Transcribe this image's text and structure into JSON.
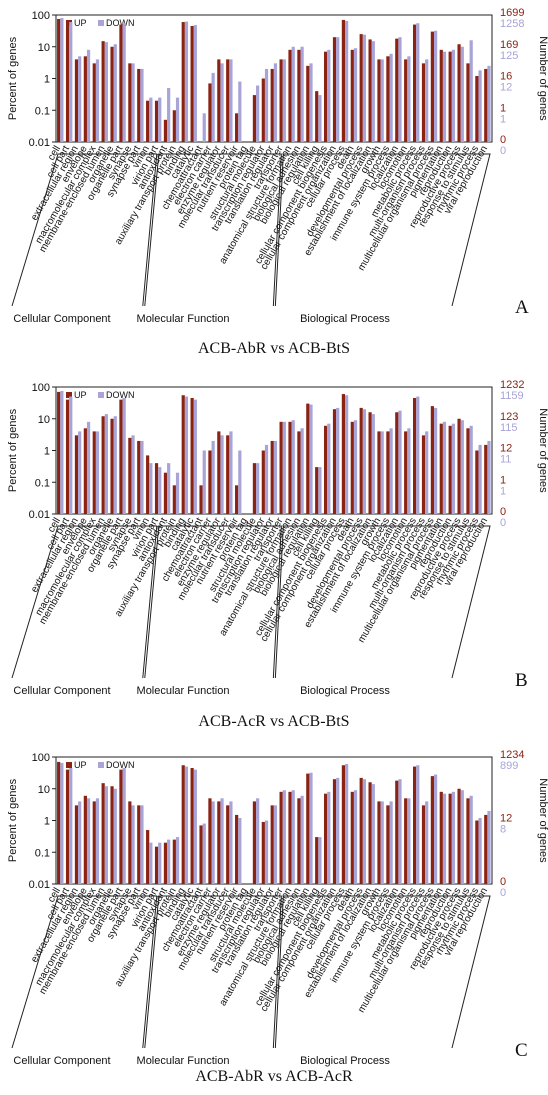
{
  "categories": [
    "cell",
    "cell part",
    "extracellular region",
    "envelope",
    "macromolecular complex",
    "membrane-enclosed lumen",
    "organelle",
    "organelle part",
    "synapse",
    "synapse part",
    "virion",
    "virion part",
    "antioxidant",
    "auxiliary transport protein",
    "binding",
    "catalytic",
    "chemoattractant",
    "electron carrier",
    "enzyme regulator",
    "molecular transducer",
    "nutrient reservoir",
    "protein tag",
    "structural molecule",
    "transcription regulator",
    "translation regulator",
    "transporter",
    "anatomical structure formation",
    "biological adhesion",
    "biological regulation",
    "cell killing",
    "cellular component biogenesis",
    "cellular component organization",
    "cellular process",
    "death",
    "developmental process",
    "establishment of localization",
    "growth",
    "immune system process",
    "localization",
    "locomotion",
    "metabolic process",
    "multi-organism process",
    "multicellular organismal process",
    "pigmentation",
    "reproduction",
    "reproductive process",
    "response to stimulus",
    "rhythmic process",
    "viral reproduction"
  ],
  "legend": {
    "up": "UP",
    "down": "DOWN"
  },
  "colors": {
    "up": "#8b2312",
    "down": "#a8a4d8"
  },
  "groups": [
    "Cellular Component",
    "Molecular Function",
    "Biological Process"
  ],
  "panels": [
    {
      "letter": "A",
      "caption": "ACB-AbR vs ACB-BtS",
      "chart_data": {
        "type": "bar",
        "ylabel": "Percent of genes",
        "y2label": "Number of genes",
        "yscale": "log",
        "ylim": [
          0.01,
          100
        ],
        "yticks": [
          "100",
          "10",
          "1",
          "0.1",
          "0.01"
        ],
        "right_up": [
          "1699",
          "169",
          "16",
          "1",
          "0"
        ],
        "right_down": [
          "1258",
          "125",
          "12",
          "1",
          "0"
        ],
        "series": [
          {
            "name": "UP",
            "values": [
              75,
              45,
              4,
              5,
              3,
              15,
              10,
              50,
              3,
              2,
              0.2,
              0.2,
              0.05,
              0.1,
              60,
              45,
              0,
              0.7,
              4,
              4,
              0.08,
              0,
              0.3,
              1,
              2,
              4,
              8,
              8,
              2.5,
              0.4,
              7,
              20,
              70,
              8,
              25,
              17,
              4,
              5,
              18,
              4,
              50,
              3,
              30,
              8,
              7,
              12,
              3,
              1.2,
              2
            ]
          },
          {
            "name": "DOWN",
            "values": [
              80,
              60,
              5,
              8,
              4,
              14,
              12,
              55,
              3,
              2,
              0.25,
              0.25,
              0.5,
              0.25,
              62,
              48,
              0.08,
              1.5,
              3,
              4,
              0.8,
              0,
              0.6,
              2,
              3,
              4,
              10,
              10,
              3,
              0.3,
              8,
              20,
              65,
              9,
              24,
              15,
              4,
              6,
              20,
              5,
              55,
              4,
              32,
              7,
              8,
              10,
              16,
              1.8,
              2.5
            ]
          }
        ]
      }
    },
    {
      "letter": "B",
      "caption": "ACB-AcR vs ACB-BtS",
      "chart_data": {
        "type": "bar",
        "ylabel": "Percent of genes",
        "y2label": "Number of genes",
        "yscale": "log",
        "ylim": [
          0.01,
          100
        ],
        "yticks": [
          "100",
          "10",
          "1",
          "0.1",
          "0.01"
        ],
        "right_up": [
          "1232",
          "123",
          "12",
          "1",
          "0"
        ],
        "right_down": [
          "1159",
          "115",
          "11",
          "1",
          "0"
        ],
        "series": [
          {
            "name": "UP",
            "values": [
              70,
              40,
              3,
              5,
              4,
              12,
              10,
              40,
              2.5,
              2,
              0.7,
              0.4,
              0.2,
              0.08,
              55,
              45,
              0.08,
              1,
              4,
              3,
              0.08,
              0,
              0.4,
              1,
              2,
              8,
              8,
              4,
              30,
              0.3,
              6,
              20,
              60,
              8,
              22,
              16,
              4,
              4,
              16,
              4,
              45,
              3,
              25,
              7,
              6,
              10,
              5,
              1,
              1.5
            ]
          },
          {
            "name": "DOWN",
            "values": [
              75,
              50,
              4,
              8,
              4,
              14,
              12,
              45,
              3,
              2,
              0.4,
              0.3,
              0.4,
              0.2,
              50,
              40,
              1,
              2,
              3,
              4,
              1,
              0,
              0.4,
              1.5,
              2,
              8,
              9,
              5,
              28,
              0.3,
              7,
              22,
              55,
              9,
              20,
              14,
              4,
              5,
              18,
              5,
              50,
              4,
              22,
              8,
              7,
              9,
              6,
              1.5,
              2
            ]
          }
        ]
      }
    },
    {
      "letter": "C",
      "caption": "ACB-AbR vs ACB-AcR",
      "chart_data": {
        "type": "bar",
        "ylabel": "Percent of genes",
        "y2label": "Number of genes",
        "yscale": "log",
        "ylim": [
          0.01,
          100
        ],
        "yticks": [
          "100",
          "10",
          "1",
          "0.1",
          "0.01"
        ],
        "right_up": [
          "1234",
          "12",
          "0"
        ],
        "right_down": [
          "899",
          "8",
          "0"
        ],
        "series": [
          {
            "name": "UP",
            "values": [
              70,
              40,
              3,
              6,
              4,
              15,
              12,
              40,
              4,
              3,
              0.5,
              0.15,
              0.2,
              0.25,
              55,
              45,
              0.7,
              5,
              4,
              3,
              1.5,
              0,
              4,
              0.9,
              3,
              8,
              8,
              5,
              30,
              0.3,
              7,
              20,
              55,
              8,
              22,
              16,
              4,
              3,
              18,
              5,
              50,
              3,
              25,
              8,
              7,
              10,
              5,
              1,
              1.5
            ]
          },
          {
            "name": "DOWN",
            "values": [
              65,
              45,
              4,
              5,
              5,
              12,
              10,
              45,
              3,
              3,
              0.2,
              0.2,
              0.25,
              0.3,
              50,
              40,
              0.8,
              4,
              5,
              4,
              1.2,
              0,
              5,
              1,
              3,
              9,
              9,
              6,
              32,
              0.3,
              8,
              22,
              60,
              9,
              20,
              14,
              4,
              4,
              20,
              5,
              55,
              4,
              28,
              7,
              8,
              9,
              6,
              1.2,
              2
            ]
          }
        ]
      }
    }
  ]
}
